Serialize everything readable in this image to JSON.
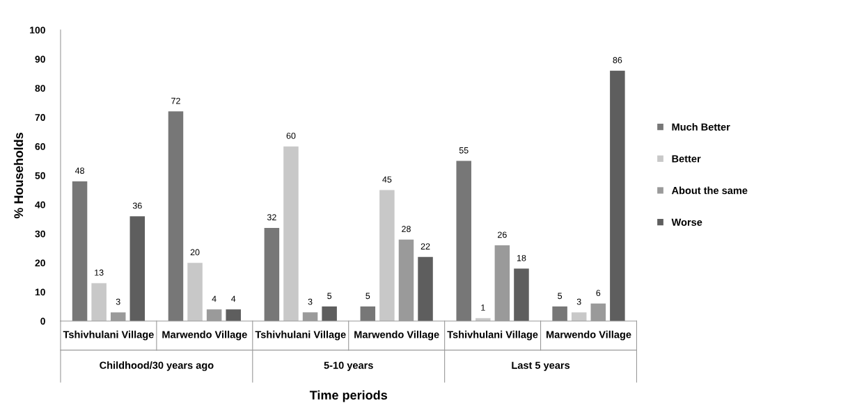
{
  "chart_data": {
    "type": "bar",
    "xlabel": "Time periods",
    "ylabel": "% Households",
    "categories": [
      "Tshivhulani Village",
      "Marwendo Village",
      "Tshivhulani Village",
      "Marwendo Village",
      "Tshivhulani Village",
      "Marwendo Village"
    ],
    "series": [
      {
        "name": "Much Better",
        "color": "#777777",
        "values": [
          48,
          72,
          32,
          5,
          55,
          5
        ]
      },
      {
        "name": "Better",
        "color": "#c8c8c8",
        "values": [
          13,
          20,
          60,
          45,
          1,
          3
        ]
      },
      {
        "name": "About the same",
        "color": "#9a9a9a",
        "values": [
          3,
          4,
          3,
          28,
          26,
          6
        ]
      },
      {
        "name": "Worse",
        "color": "#5e5e5e",
        "values": [
          36,
          4,
          5,
          22,
          18,
          86
        ]
      }
    ],
    "annotations": [
      "Childhood/30 years ago",
      "5-10 years",
      "Last 5 years"
    ],
    "ylim": [
      0,
      100
    ],
    "yticks": [
      0,
      10,
      20,
      30,
      40,
      50,
      60,
      70,
      80,
      90,
      100
    ],
    "data_labels": true,
    "legend": "right",
    "grid": false
  }
}
